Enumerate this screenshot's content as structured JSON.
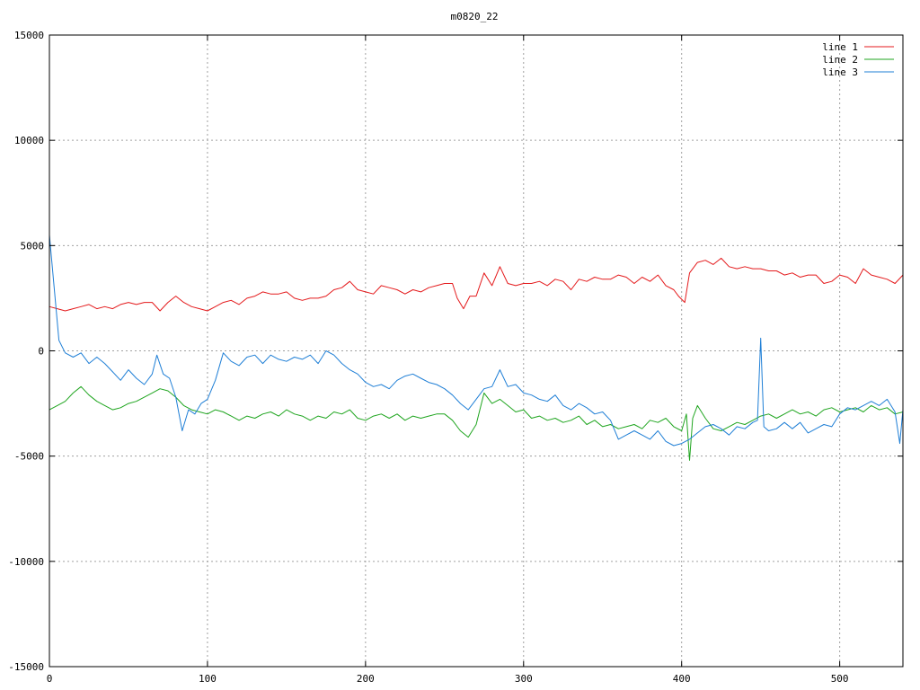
{
  "chart_data": {
    "type": "line",
    "title": "m0820_22",
    "xlim": [
      0,
      540
    ],
    "ylim": [
      -15000,
      15000
    ],
    "xticks": [
      0,
      100,
      200,
      300,
      400,
      500
    ],
    "yticks": [
      -15000,
      -10000,
      -5000,
      0,
      5000,
      10000,
      15000
    ],
    "grid": true,
    "legend_position": "top-right",
    "series": [
      {
        "name": "line 1",
        "color": "#e41a1c",
        "x": [
          0,
          5,
          10,
          15,
          20,
          25,
          30,
          35,
          40,
          45,
          50,
          55,
          60,
          65,
          70,
          75,
          80,
          85,
          90,
          95,
          100,
          105,
          110,
          115,
          120,
          125,
          130,
          135,
          140,
          145,
          150,
          155,
          160,
          165,
          170,
          175,
          180,
          185,
          190,
          195,
          200,
          205,
          210,
          215,
          220,
          225,
          230,
          235,
          240,
          245,
          250,
          255,
          258,
          262,
          266,
          270,
          275,
          280,
          285,
          290,
          295,
          300,
          305,
          310,
          315,
          320,
          325,
          330,
          335,
          340,
          345,
          350,
          355,
          360,
          365,
          370,
          375,
          380,
          385,
          390,
          395,
          398,
          402,
          405,
          410,
          415,
          420,
          425,
          430,
          435,
          440,
          445,
          450,
          455,
          460,
          465,
          470,
          475,
          480,
          485,
          490,
          495,
          500,
          505,
          510,
          515,
          520,
          525,
          530,
          535,
          540
        ],
        "y": [
          2100,
          2000,
          1900,
          2000,
          2100,
          2200,
          2000,
          2100,
          2000,
          2200,
          2300,
          2200,
          2300,
          2300,
          1900,
          2300,
          2600,
          2300,
          2100,
          2000,
          1900,
          2100,
          2300,
          2400,
          2200,
          2500,
          2600,
          2800,
          2700,
          2700,
          2800,
          2500,
          2400,
          2500,
          2500,
          2600,
          2900,
          3000,
          3300,
          2900,
          2800,
          2700,
          3100,
          3000,
          2900,
          2700,
          2900,
          2800,
          3000,
          3100,
          3200,
          3200,
          2500,
          2000,
          2600,
          2600,
          3700,
          3100,
          4000,
          3200,
          3100,
          3200,
          3200,
          3300,
          3100,
          3400,
          3300,
          2900,
          3400,
          3300,
          3500,
          3400,
          3400,
          3600,
          3500,
          3200,
          3500,
          3300,
          3600,
          3100,
          2900,
          2600,
          2300,
          3700,
          4200,
          4300,
          4100,
          4400,
          4000,
          3900,
          4000,
          3900,
          3900,
          3800,
          3800,
          3600,
          3700,
          3500,
          3600,
          3600,
          3200,
          3300,
          3600,
          3500,
          3200,
          3900,
          3600,
          3500,
          3400,
          3200,
          3600
        ]
      },
      {
        "name": "line 2",
        "color": "#1fa51f",
        "x": [
          0,
          5,
          10,
          15,
          20,
          25,
          30,
          35,
          40,
          45,
          50,
          55,
          60,
          65,
          70,
          75,
          80,
          85,
          90,
          95,
          100,
          105,
          110,
          115,
          120,
          125,
          130,
          135,
          140,
          145,
          150,
          155,
          160,
          165,
          170,
          175,
          180,
          185,
          190,
          195,
          200,
          205,
          210,
          215,
          220,
          225,
          230,
          235,
          240,
          245,
          250,
          255,
          260,
          265,
          270,
          275,
          280,
          285,
          290,
          295,
          300,
          305,
          310,
          315,
          320,
          325,
          330,
          335,
          340,
          345,
          350,
          355,
          360,
          365,
          370,
          375,
          380,
          385,
          390,
          395,
          400,
          403,
          405,
          407,
          410,
          415,
          420,
          425,
          430,
          435,
          440,
          445,
          450,
          455,
          460,
          465,
          470,
          475,
          480,
          485,
          490,
          495,
          500,
          505,
          510,
          515,
          520,
          525,
          530,
          535,
          540
        ],
        "y": [
          -2800,
          -2600,
          -2400,
          -2000,
          -1700,
          -2100,
          -2400,
          -2600,
          -2800,
          -2700,
          -2500,
          -2400,
          -2200,
          -2000,
          -1800,
          -1900,
          -2200,
          -2600,
          -2800,
          -2900,
          -3000,
          -2800,
          -2900,
          -3100,
          -3300,
          -3100,
          -3200,
          -3000,
          -2900,
          -3100,
          -2800,
          -3000,
          -3100,
          -3300,
          -3100,
          -3200,
          -2900,
          -3000,
          -2800,
          -3200,
          -3300,
          -3100,
          -3000,
          -3200,
          -3000,
          -3300,
          -3100,
          -3200,
          -3100,
          -3000,
          -3000,
          -3300,
          -3800,
          -4100,
          -3500,
          -2000,
          -2500,
          -2300,
          -2600,
          -2900,
          -2800,
          -3200,
          -3100,
          -3300,
          -3200,
          -3400,
          -3300,
          -3100,
          -3500,
          -3300,
          -3600,
          -3500,
          -3700,
          -3600,
          -3500,
          -3700,
          -3300,
          -3400,
          -3200,
          -3600,
          -3800,
          -3000,
          -5200,
          -3200,
          -2600,
          -3200,
          -3700,
          -3800,
          -3600,
          -3400,
          -3500,
          -3300,
          -3100,
          -3000,
          -3200,
          -3000,
          -2800,
          -3000,
          -2900,
          -3100,
          -2800,
          -2700,
          -2900,
          -2800,
          -2700,
          -2900,
          -2600,
          -2800,
          -2700,
          -3000,
          -2900
        ]
      },
      {
        "name": "line 3",
        "color": "#1f7fd6",
        "x": [
          0,
          3,
          6,
          10,
          15,
          20,
          25,
          30,
          35,
          40,
          45,
          50,
          55,
          60,
          65,
          68,
          72,
          76,
          80,
          84,
          88,
          92,
          96,
          100,
          105,
          110,
          115,
          120,
          125,
          130,
          135,
          140,
          145,
          150,
          155,
          160,
          165,
          170,
          175,
          180,
          185,
          190,
          195,
          200,
          205,
          210,
          215,
          220,
          225,
          230,
          235,
          240,
          245,
          250,
          255,
          260,
          265,
          270,
          275,
          280,
          285,
          290,
          295,
          300,
          305,
          310,
          315,
          320,
          325,
          330,
          335,
          340,
          345,
          350,
          355,
          360,
          365,
          370,
          375,
          380,
          385,
          390,
          395,
          400,
          405,
          410,
          415,
          420,
          425,
          430,
          435,
          440,
          445,
          448,
          450,
          452,
          455,
          460,
          465,
          470,
          475,
          480,
          485,
          490,
          495,
          500,
          505,
          510,
          515,
          520,
          525,
          530,
          535,
          538,
          540
        ],
        "y": [
          5500,
          3000,
          500,
          -100,
          -300,
          -100,
          -600,
          -300,
          -600,
          -1000,
          -1400,
          -900,
          -1300,
          -1600,
          -1100,
          -200,
          -1100,
          -1300,
          -2200,
          -3800,
          -2800,
          -3000,
          -2500,
          -2300,
          -1400,
          -100,
          -500,
          -700,
          -300,
          -200,
          -600,
          -200,
          -400,
          -500,
          -300,
          -400,
          -200,
          -600,
          0,
          -200,
          -600,
          -900,
          -1100,
          -1500,
          -1700,
          -1600,
          -1800,
          -1400,
          -1200,
          -1100,
          -1300,
          -1500,
          -1600,
          -1800,
          -2100,
          -2500,
          -2800,
          -2300,
          -1800,
          -1700,
          -900,
          -1700,
          -1600,
          -2000,
          -2100,
          -2300,
          -2400,
          -2100,
          -2600,
          -2800,
          -2500,
          -2700,
          -3000,
          -2900,
          -3300,
          -4200,
          -4000,
          -3800,
          -4000,
          -4200,
          -3800,
          -4300,
          -4500,
          -4400,
          -4200,
          -3900,
          -3600,
          -3500,
          -3700,
          -4000,
          -3600,
          -3700,
          -3400,
          -3300,
          600,
          -3600,
          -3800,
          -3700,
          -3400,
          -3700,
          -3400,
          -3900,
          -3700,
          -3500,
          -3600,
          -3000,
          -2700,
          -2800,
          -2600,
          -2400,
          -2600,
          -2300,
          -2900,
          -4400,
          -2800
        ]
      }
    ]
  }
}
